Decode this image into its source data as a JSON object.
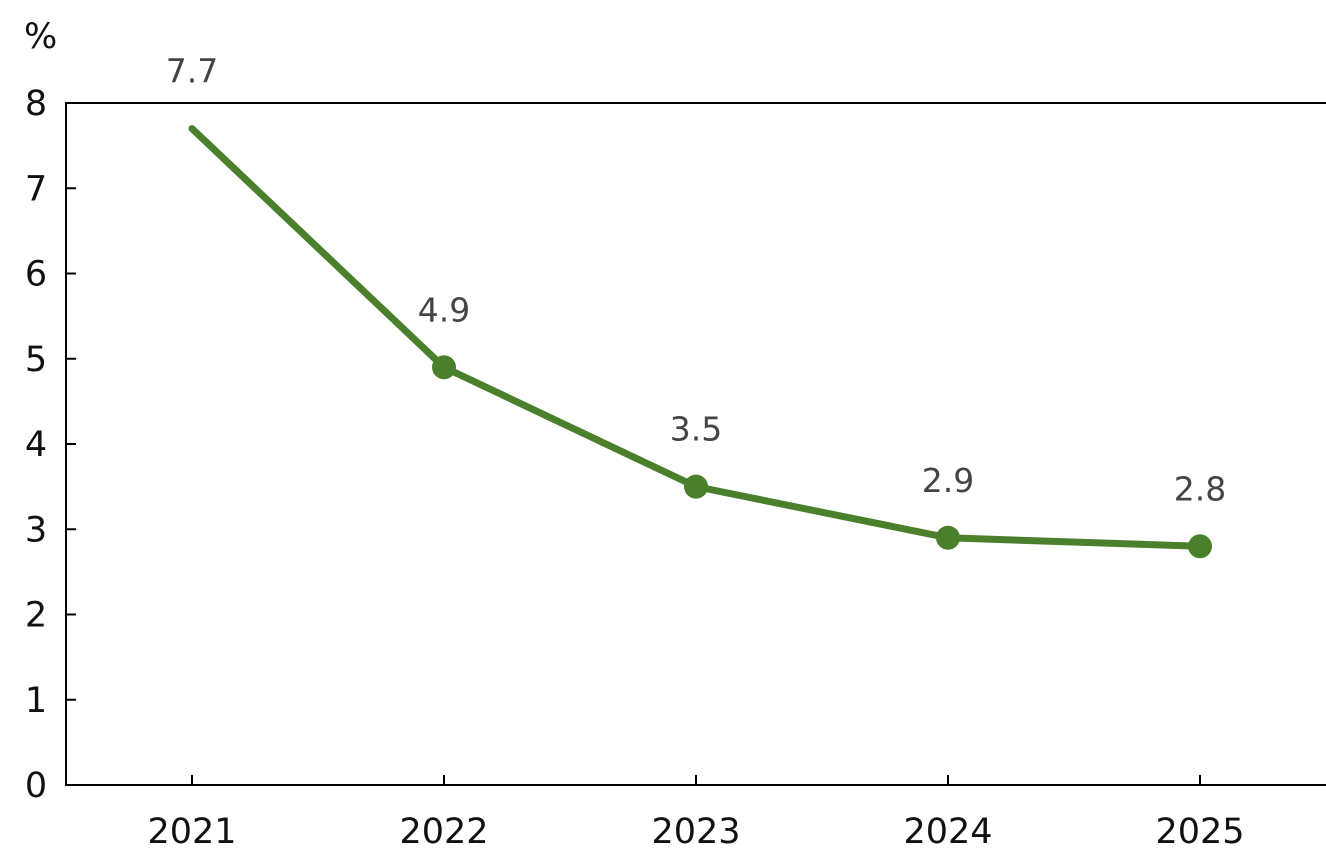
{
  "chart_data": {
    "type": "line",
    "title": "",
    "xlabel": "",
    "ylabel": "%",
    "categories": [
      "2021",
      "2022",
      "2023",
      "2024",
      "2025"
    ],
    "series": [
      {
        "values": [
          7.7,
          4.9,
          3.5,
          2.9,
          2.8
        ],
        "data_labels": [
          "7.7",
          "4.9",
          "3.5",
          "2.9",
          "2.8"
        ]
      }
    ],
    "ylim": [
      0,
      8
    ],
    "yticks": [
      0,
      1,
      2,
      3,
      4,
      5,
      6,
      7,
      8
    ],
    "grid": false,
    "colors": {
      "series": "#4a7f2b"
    }
  }
}
